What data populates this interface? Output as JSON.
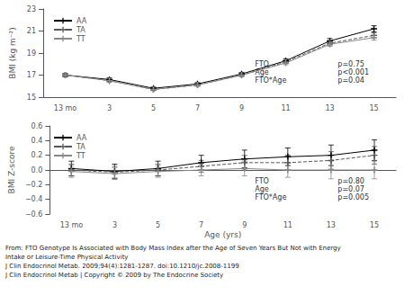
{
  "chart_data": [
    {
      "type": "line",
      "categories": [
        "13 mo",
        "3",
        "5",
        "7",
        "9",
        "11",
        "13",
        "15"
      ],
      "ylabel": "BMI (kg m⁻²)",
      "ylim": [
        15,
        23
      ],
      "yticks": [
        15,
        17,
        19,
        21,
        23
      ],
      "grid": false,
      "legend": "upper left",
      "series": [
        {
          "name": "AA",
          "color": "#000000",
          "line_style": "solid",
          "marker": "plus",
          "values": [
            17.0,
            16.6,
            15.8,
            16.2,
            17.1,
            18.3,
            20.1,
            21.2
          ],
          "errors": [
            0.15,
            0.15,
            0.12,
            0.12,
            0.15,
            0.18,
            0.22,
            0.28
          ]
        },
        {
          "name": "TA",
          "color": "#555555",
          "line_style": "dashed",
          "marker": "plus",
          "values": [
            17.0,
            16.5,
            15.7,
            16.1,
            17.0,
            18.2,
            19.9,
            20.6
          ],
          "errors": [
            0.12,
            0.12,
            0.1,
            0.1,
            0.12,
            0.15,
            0.18,
            0.22
          ]
        },
        {
          "name": "TT",
          "color": "#888888",
          "line_style": "solid",
          "marker": "plus",
          "values": [
            17.0,
            16.5,
            15.7,
            16.1,
            17.0,
            18.1,
            19.8,
            20.4
          ],
          "errors": [
            0.12,
            0.12,
            0.1,
            0.1,
            0.12,
            0.15,
            0.18,
            0.22
          ]
        }
      ],
      "annotations": [
        {
          "text": "FTO",
          "pvalue": "p=0.75"
        },
        {
          "text": "Age",
          "pvalue": "p<0.001"
        },
        {
          "text": "FTO*Age",
          "pvalue": "p=0.04"
        }
      ]
    },
    {
      "type": "line",
      "categories": [
        "13 mo",
        "3",
        "5",
        "7",
        "9",
        "11",
        "13",
        "15"
      ],
      "xlabel": "Age (yrs)",
      "ylabel": "BMI Z-score",
      "ylim": [
        -0.6,
        0.6
      ],
      "yticks": [
        {
          "value": -0.6,
          "label": "−0.6"
        },
        {
          "value": -0.4,
          "label": "−0.4"
        },
        {
          "value": -0.2,
          "label": "−0.2"
        },
        {
          "value": 0.0,
          "label": "0.0"
        },
        0.2,
        0.4,
        0.6
      ],
      "grid": false,
      "legend": "upper left",
      "series": [
        {
          "name": "AA",
          "color": "#000000",
          "line_style": "solid",
          "marker": "plus",
          "values": [
            0.02,
            -0.02,
            0.02,
            0.1,
            0.15,
            0.18,
            0.2,
            0.27
          ],
          "errors": [
            0.1,
            0.1,
            0.1,
            0.1,
            0.12,
            0.12,
            0.14,
            0.14
          ]
        },
        {
          "name": "TA",
          "color": "#555555",
          "line_style": "dashed",
          "marker": "plus",
          "values": [
            0.0,
            -0.03,
            0.0,
            0.05,
            0.1,
            0.1,
            0.13,
            0.2
          ],
          "errors": [
            0.08,
            0.08,
            0.08,
            0.08,
            0.1,
            0.1,
            0.12,
            0.12
          ]
        },
        {
          "name": "TT",
          "color": "#888888",
          "line_style": "solid",
          "marker": "plus",
          "values": [
            -0.02,
            -0.05,
            -0.02,
            0.0,
            0.02,
            0.0,
            0.0,
            0.0
          ],
          "errors": [
            0.08,
            0.08,
            0.08,
            0.08,
            0.1,
            0.1,
            0.12,
            0.12
          ]
        }
      ],
      "annotations": [
        {
          "text": "FTO",
          "pvalue": "p=0.80"
        },
        {
          "text": "Age",
          "pvalue": "p=0.07"
        },
        {
          "text": "FTO*Age",
          "pvalue": "p=0.005"
        }
      ]
    }
  ],
  "caption": [
    "From: FTO Genotype Is Associated with Body Mass Index after the Age of Seven Years But Not with Energy",
    "Intake or Leisure-Time Physical Activity",
    "J Clin Endocrinol Metab. 2009;94(4):1281-1287. doi:10.1210/jc.2008-1199",
    "J Clin Endocrinol Metab | Copyright © 2009 by The Endocrine Society"
  ]
}
